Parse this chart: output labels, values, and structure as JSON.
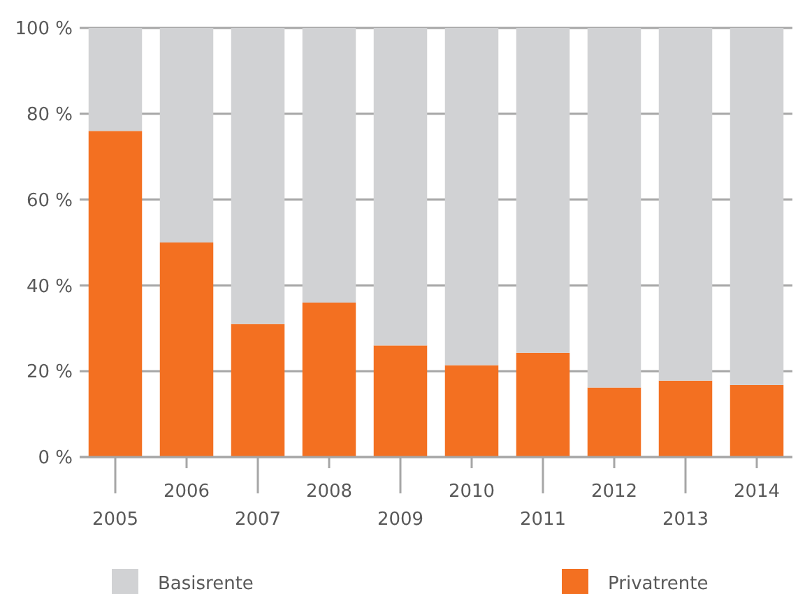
{
  "chart_data": {
    "type": "bar",
    "stacked": true,
    "categories": [
      "2005",
      "2006",
      "2007",
      "2008",
      "2009",
      "2010",
      "2011",
      "2012",
      "2013",
      "2014"
    ],
    "series": [
      {
        "name": "Privatrente",
        "color": "#f37021",
        "values": [
          76,
          50,
          31,
          36,
          26,
          21.4,
          24.3,
          16.2,
          17.8,
          16.8
        ]
      },
      {
        "name": "Basisrente",
        "color": "#d1d2d4",
        "values": [
          24,
          50,
          69,
          64,
          74,
          78.6,
          75.7,
          83.8,
          82.2,
          83.2
        ]
      }
    ],
    "ylim": [
      0,
      100
    ],
    "yticks": [
      {
        "value": 0,
        "label": "0 %"
      },
      {
        "value": 20,
        "label": "20 %"
      },
      {
        "value": 40,
        "label": "40 %"
      },
      {
        "value": 60,
        "label": "60 %"
      },
      {
        "value": 80,
        "label": "80 %"
      },
      {
        "value": 100,
        "label": "100 %"
      }
    ],
    "grid": "y",
    "legend": "bottom"
  }
}
